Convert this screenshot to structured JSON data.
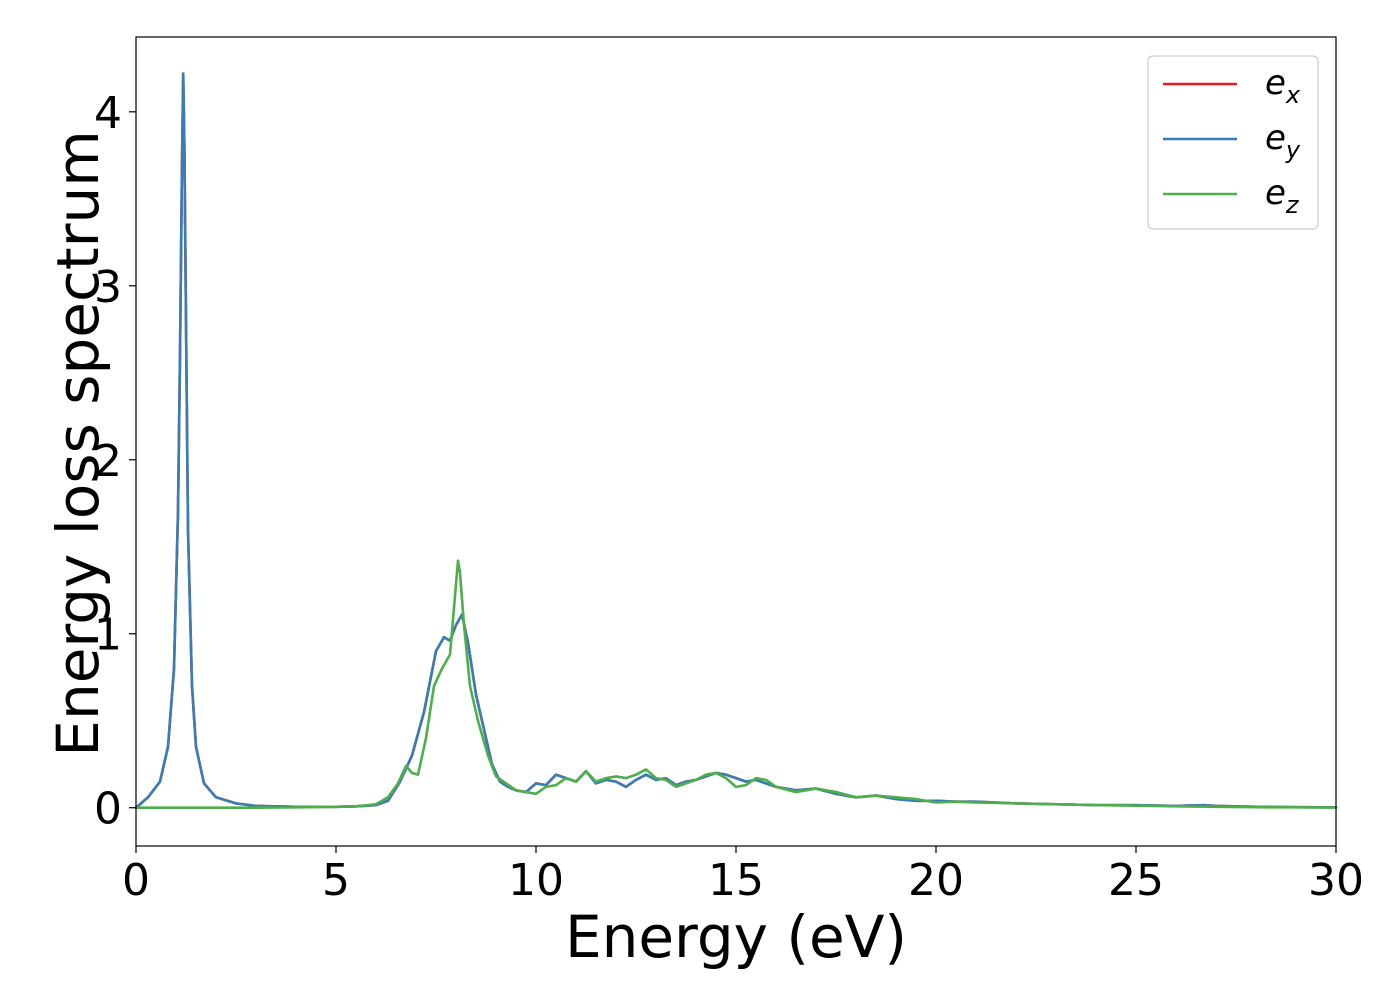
{
  "chart_data": {
    "type": "line",
    "xlabel": "Energy (eV)",
    "ylabel": "Energy loss spectrum",
    "xlim": [
      0,
      30
    ],
    "ylim": [
      -0.22,
      4.43
    ],
    "xticks": [
      0,
      5,
      10,
      15,
      20,
      25,
      30
    ],
    "yticks": [
      0,
      1,
      2,
      3,
      4
    ],
    "grid": false,
    "legend_position": "top-right",
    "series": [
      {
        "name": "e_x",
        "label_base": "e",
        "label_sub": "x",
        "color": "#e41a1c",
        "x": [
          0,
          0.3,
          0.6,
          0.8,
          0.95,
          1.05,
          1.1,
          1.15,
          1.18,
          1.21,
          1.25,
          1.3,
          1.4,
          1.5,
          1.7,
          2.0,
          2.5,
          3.0,
          4.0,
          5.0,
          5.5,
          6.0,
          6.3,
          6.6,
          6.9,
          7.2,
          7.5,
          7.7,
          7.85,
          8.0,
          8.15,
          8.3,
          8.5,
          8.7,
          8.9,
          9.1,
          9.3,
          9.5,
          9.75,
          10.0,
          10.25,
          10.5,
          10.75,
          11.0,
          11.25,
          11.5,
          11.75,
          12.0,
          12.25,
          12.5,
          12.75,
          13.0,
          13.25,
          13.5,
          13.75,
          14.0,
          14.25,
          14.5,
          14.75,
          15.0,
          15.25,
          15.5,
          15.75,
          16.0,
          16.5,
          17.0,
          17.5,
          18.0,
          18.5,
          19.0,
          19.5,
          20.0,
          20.5,
          21.0,
          21.5,
          22.0,
          23.0,
          24.0,
          25.0,
          26.0,
          26.7,
          27.0,
          28.0,
          29.0,
          30.0
        ],
        "y": [
          0,
          0.06,
          0.15,
          0.35,
          0.8,
          1.7,
          2.6,
          3.7,
          4.22,
          3.8,
          2.8,
          1.6,
          0.7,
          0.35,
          0.14,
          0.06,
          0.025,
          0.01,
          0.005,
          0.005,
          0.008,
          0.015,
          0.04,
          0.15,
          0.3,
          0.55,
          0.9,
          0.98,
          0.96,
          1.05,
          1.11,
          0.95,
          0.65,
          0.45,
          0.25,
          0.15,
          0.12,
          0.1,
          0.09,
          0.14,
          0.13,
          0.19,
          0.17,
          0.15,
          0.21,
          0.14,
          0.16,
          0.15,
          0.12,
          0.16,
          0.19,
          0.16,
          0.17,
          0.13,
          0.15,
          0.16,
          0.18,
          0.2,
          0.19,
          0.17,
          0.15,
          0.16,
          0.14,
          0.12,
          0.1,
          0.11,
          0.08,
          0.06,
          0.07,
          0.05,
          0.04,
          0.04,
          0.035,
          0.035,
          0.03,
          0.025,
          0.02,
          0.015,
          0.015,
          0.01,
          0.015,
          0.01,
          0.005,
          0.003,
          0.002
        ]
      },
      {
        "name": "e_y",
        "label_base": "e",
        "label_sub": "y",
        "color": "#377eb8",
        "x": [
          0,
          0.3,
          0.6,
          0.8,
          0.95,
          1.05,
          1.1,
          1.15,
          1.18,
          1.21,
          1.25,
          1.3,
          1.4,
          1.5,
          1.7,
          2.0,
          2.5,
          3.0,
          4.0,
          5.0,
          5.5,
          6.0,
          6.3,
          6.6,
          6.9,
          7.2,
          7.5,
          7.7,
          7.85,
          8.0,
          8.15,
          8.3,
          8.5,
          8.7,
          8.9,
          9.1,
          9.3,
          9.5,
          9.75,
          10.0,
          10.25,
          10.5,
          10.75,
          11.0,
          11.25,
          11.5,
          11.75,
          12.0,
          12.25,
          12.5,
          12.75,
          13.0,
          13.25,
          13.5,
          13.75,
          14.0,
          14.25,
          14.5,
          14.75,
          15.0,
          15.25,
          15.5,
          15.75,
          16.0,
          16.5,
          17.0,
          17.5,
          18.0,
          18.5,
          19.0,
          19.5,
          20.0,
          20.5,
          21.0,
          21.5,
          22.0,
          23.0,
          24.0,
          25.0,
          26.0,
          26.7,
          27.0,
          28.0,
          29.0,
          30.0
        ],
        "y": [
          0,
          0.06,
          0.15,
          0.35,
          0.8,
          1.7,
          2.6,
          3.7,
          4.22,
          3.8,
          2.8,
          1.6,
          0.7,
          0.35,
          0.14,
          0.06,
          0.025,
          0.01,
          0.005,
          0.005,
          0.008,
          0.015,
          0.04,
          0.15,
          0.3,
          0.55,
          0.9,
          0.98,
          0.96,
          1.05,
          1.11,
          0.95,
          0.65,
          0.45,
          0.25,
          0.15,
          0.12,
          0.1,
          0.09,
          0.14,
          0.13,
          0.19,
          0.17,
          0.15,
          0.21,
          0.14,
          0.16,
          0.15,
          0.12,
          0.16,
          0.19,
          0.16,
          0.17,
          0.13,
          0.15,
          0.16,
          0.18,
          0.2,
          0.19,
          0.17,
          0.15,
          0.16,
          0.14,
          0.12,
          0.1,
          0.11,
          0.08,
          0.06,
          0.07,
          0.05,
          0.04,
          0.04,
          0.035,
          0.035,
          0.03,
          0.025,
          0.02,
          0.015,
          0.015,
          0.01,
          0.015,
          0.01,
          0.005,
          0.003,
          0.002
        ]
      },
      {
        "name": "e_z",
        "label_base": "e",
        "label_sub": "z",
        "color": "#4daf4a",
        "x": [
          0,
          1.0,
          2.0,
          3.0,
          4.0,
          5.0,
          5.5,
          6.0,
          6.3,
          6.55,
          6.75,
          6.9,
          7.05,
          7.25,
          7.45,
          7.65,
          7.85,
          7.95,
          8.05,
          8.1,
          8.2,
          8.35,
          8.55,
          8.8,
          9.0,
          9.25,
          9.5,
          9.75,
          10.0,
          10.25,
          10.5,
          10.75,
          11.0,
          11.25,
          11.5,
          11.75,
          12.0,
          12.25,
          12.5,
          12.75,
          13.0,
          13.25,
          13.5,
          13.75,
          14.0,
          14.25,
          14.5,
          14.75,
          15.0,
          15.25,
          15.5,
          15.75,
          16.0,
          16.5,
          17.0,
          17.5,
          18.0,
          18.5,
          19.0,
          19.5,
          20.0,
          20.5,
          21.0,
          22.0,
          23.0,
          24.0,
          25.0,
          26.0,
          27.0,
          28.0,
          29.0,
          30.0
        ],
        "y": [
          0,
          0,
          0,
          0,
          0.002,
          0.005,
          0.008,
          0.02,
          0.06,
          0.14,
          0.24,
          0.2,
          0.19,
          0.4,
          0.7,
          0.8,
          0.88,
          1.15,
          1.42,
          1.35,
          1.05,
          0.7,
          0.5,
          0.3,
          0.18,
          0.14,
          0.1,
          0.09,
          0.08,
          0.12,
          0.13,
          0.17,
          0.15,
          0.21,
          0.15,
          0.17,
          0.18,
          0.17,
          0.19,
          0.22,
          0.17,
          0.16,
          0.12,
          0.14,
          0.16,
          0.19,
          0.2,
          0.17,
          0.12,
          0.13,
          0.17,
          0.16,
          0.12,
          0.09,
          0.11,
          0.09,
          0.06,
          0.07,
          0.06,
          0.05,
          0.03,
          0.035,
          0.03,
          0.025,
          0.02,
          0.015,
          0.012,
          0.008,
          0.005,
          0.003,
          0.002,
          0.001
        ]
      }
    ]
  }
}
